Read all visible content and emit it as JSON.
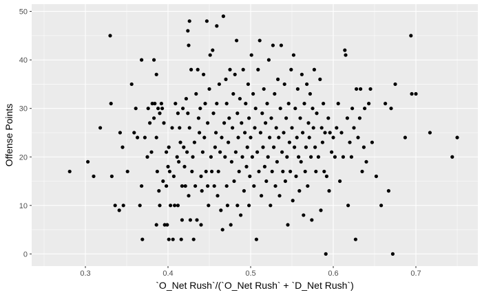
{
  "chart_data": {
    "type": "scatter",
    "title": "",
    "xlabel": "`O_Net Rush`/(`O_Net Rush` + `D_Net Rush`)",
    "ylabel": "Offense Points",
    "xlim": [
      0.235,
      0.775
    ],
    "ylim": [
      -2.5,
      51.5
    ],
    "xticks": [
      0.3,
      0.4,
      0.5,
      0.6,
      0.7
    ],
    "yticks": [
      0,
      10,
      20,
      30,
      40,
      50
    ],
    "grid": true,
    "legend": "none",
    "point_color": "#000000",
    "panel_color": "#ebebeb",
    "grid_color": "#ffffff",
    "series": [
      {
        "points": [
          [
            0.281,
            17
          ],
          [
            0.303,
            19
          ],
          [
            0.31,
            16
          ],
          [
            0.318,
            26
          ],
          [
            0.33,
            45
          ],
          [
            0.331,
            31
          ],
          [
            0.332,
            16
          ],
          [
            0.336,
            10
          ],
          [
            0.341,
            9
          ],
          [
            0.342,
            25
          ],
          [
            0.345,
            22
          ],
          [
            0.346,
            10
          ],
          [
            0.351,
            17
          ],
          [
            0.356,
            35
          ],
          [
            0.359,
            25
          ],
          [
            0.361,
            30
          ],
          [
            0.363,
            24
          ],
          [
            0.366,
            10
          ],
          [
            0.368,
            40
          ],
          [
            0.368,
            14
          ],
          [
            0.369,
            3
          ],
          [
            0.372,
            24
          ],
          [
            0.375,
            20
          ],
          [
            0.376,
            30
          ],
          [
            0.378,
            27
          ],
          [
            0.38,
            21
          ],
          [
            0.381,
            31
          ],
          [
            0.383,
            40
          ],
          [
            0.383,
            28
          ],
          [
            0.384,
            31
          ],
          [
            0.386,
            24
          ],
          [
            0.386,
            37
          ],
          [
            0.386,
            6
          ],
          [
            0.387,
            17
          ],
          [
            0.388,
            30
          ],
          [
            0.389,
            13
          ],
          [
            0.39,
            29
          ],
          [
            0.39,
            10
          ],
          [
            0.392,
            31
          ],
          [
            0.393,
            30
          ],
          [
            0.394,
            15
          ],
          [
            0.395,
            27
          ],
          [
            0.396,
            6
          ],
          [
            0.398,
            14
          ],
          [
            0.398,
            21
          ],
          [
            0.399,
            6
          ],
          [
            0.4,
            18
          ],
          [
            0.401,
            22
          ],
          [
            0.401,
            3
          ],
          [
            0.402,
            17
          ],
          [
            0.403,
            10
          ],
          [
            0.405,
            26
          ],
          [
            0.406,
            3
          ],
          [
            0.407,
            16
          ],
          [
            0.408,
            10
          ],
          [
            0.409,
            31
          ],
          [
            0.411,
            20
          ],
          [
            0.412,
            10
          ],
          [
            0.412,
            29
          ],
          [
            0.413,
            19
          ],
          [
            0.414,
            26
          ],
          [
            0.415,
            23
          ],
          [
            0.416,
            3
          ],
          [
            0.417,
            14
          ],
          [
            0.417,
            7
          ],
          [
            0.418,
            30
          ],
          [
            0.419,
            22
          ],
          [
            0.42,
            18
          ],
          [
            0.421,
            14
          ],
          [
            0.422,
            32
          ],
          [
            0.423,
            21
          ],
          [
            0.424,
            46
          ],
          [
            0.424,
            29
          ],
          [
            0.425,
            12
          ],
          [
            0.425,
            43
          ],
          [
            0.426,
            48
          ],
          [
            0.426,
            26
          ],
          [
            0.427,
            7
          ],
          [
            0.428,
            38
          ],
          [
            0.429,
            17
          ],
          [
            0.43,
            20
          ],
          [
            0.431,
            3
          ],
          [
            0.432,
            23
          ],
          [
            0.433,
            14
          ],
          [
            0.434,
            33
          ],
          [
            0.435,
            7
          ],
          [
            0.436,
            38
          ],
          [
            0.437,
            28
          ],
          [
            0.438,
            25
          ],
          [
            0.439,
            30
          ],
          [
            0.44,
            16
          ],
          [
            0.44,
            6
          ],
          [
            0.441,
            13
          ],
          [
            0.442,
            21
          ],
          [
            0.443,
            37
          ],
          [
            0.444,
            24
          ],
          [
            0.445,
            31
          ],
          [
            0.446,
            17
          ],
          [
            0.447,
            48
          ],
          [
            0.448,
            14
          ],
          [
            0.448,
            27
          ],
          [
            0.449,
            10
          ],
          [
            0.45,
            34
          ],
          [
            0.451,
            41
          ],
          [
            0.452,
            20
          ],
          [
            0.453,
            17
          ],
          [
            0.454,
            42
          ],
          [
            0.455,
            29
          ],
          [
            0.456,
            14
          ],
          [
            0.457,
            22
          ],
          [
            0.458,
            25
          ],
          [
            0.459,
            47
          ],
          [
            0.459,
            31
          ],
          [
            0.46,
            12
          ],
          [
            0.461,
            17
          ],
          [
            0.462,
            35
          ],
          [
            0.463,
            21
          ],
          [
            0.464,
            9
          ],
          [
            0.465,
            24
          ],
          [
            0.466,
            5
          ],
          [
            0.467,
            49
          ],
          [
            0.468,
            27
          ],
          [
            0.469,
            20
          ],
          [
            0.47,
            36
          ],
          [
            0.471,
            14
          ],
          [
            0.471,
            31
          ],
          [
            0.472,
            10
          ],
          [
            0.473,
            23
          ],
          [
            0.474,
            28
          ],
          [
            0.475,
            38
          ],
          [
            0.476,
            6
          ],
          [
            0.477,
            19
          ],
          [
            0.478,
            26
          ],
          [
            0.479,
            33
          ],
          [
            0.48,
            15
          ],
          [
            0.481,
            37
          ],
          [
            0.482,
            21
          ],
          [
            0.483,
            44
          ],
          [
            0.484,
            10
          ],
          [
            0.484,
            29
          ],
          [
            0.485,
            24
          ],
          [
            0.486,
            17
          ],
          [
            0.487,
            32
          ],
          [
            0.488,
            8
          ],
          [
            0.489,
            27
          ],
          [
            0.49,
            20
          ],
          [
            0.491,
            38
          ],
          [
            0.492,
            13
          ],
          [
            0.493,
            25
          ],
          [
            0.494,
            31
          ],
          [
            0.495,
            18
          ],
          [
            0.496,
            22
          ],
          [
            0.497,
            35
          ],
          [
            0.498,
            10
          ],
          [
            0.498,
            28
          ],
          [
            0.499,
            16
          ],
          [
            0.5,
            24
          ],
          [
            0.501,
            41
          ],
          [
            0.502,
            20
          ],
          [
            0.503,
            33
          ],
          [
            0.504,
            14
          ],
          [
            0.505,
            26
          ],
          [
            0.506,
            30
          ],
          [
            0.507,
            3
          ],
          [
            0.508,
            21
          ],
          [
            0.509,
            38
          ],
          [
            0.51,
            17
          ],
          [
            0.511,
            44
          ],
          [
            0.512,
            25
          ],
          [
            0.513,
            12
          ],
          [
            0.514,
            29
          ],
          [
            0.515,
            22
          ],
          [
            0.516,
            34
          ],
          [
            0.517,
            18
          ],
          [
            0.518,
            27
          ],
          [
            0.519,
            15
          ],
          [
            0.52,
            31
          ],
          [
            0.521,
            20
          ],
          [
            0.522,
            40
          ],
          [
            0.523,
            24
          ],
          [
            0.524,
            10
          ],
          [
            0.525,
            28
          ],
          [
            0.526,
            17
          ],
          [
            0.527,
            43
          ],
          [
            0.528,
            22
          ],
          [
            0.529,
            33
          ],
          [
            0.53,
            14
          ],
          [
            0.531,
            26
          ],
          [
            0.532,
            19
          ],
          [
            0.533,
            36
          ],
          [
            0.534,
            24
          ],
          [
            0.535,
            12
          ],
          [
            0.536,
            30
          ],
          [
            0.537,
            43
          ],
          [
            0.538,
            21
          ],
          [
            0.539,
            17
          ],
          [
            0.54,
            25
          ],
          [
            0.541,
            35
          ],
          [
            0.542,
            15
          ],
          [
            0.543,
            28
          ],
          [
            0.544,
            20
          ],
          [
            0.545,
            6
          ],
          [
            0.546,
            31
          ],
          [
            0.547,
            23
          ],
          [
            0.548,
            17
          ],
          [
            0.549,
            38
          ],
          [
            0.55,
            26
          ],
          [
            0.551,
            11
          ],
          [
            0.552,
            41
          ],
          [
            0.553,
            22
          ],
          [
            0.554,
            30
          ],
          [
            0.555,
            16
          ],
          [
            0.556,
            24
          ],
          [
            0.557,
            34
          ],
          [
            0.558,
            20
          ],
          [
            0.559,
            13
          ],
          [
            0.56,
            28
          ],
          [
            0.561,
            19
          ],
          [
            0.562,
            37
          ],
          [
            0.563,
            25
          ],
          [
            0.564,
            8
          ],
          [
            0.565,
            31
          ],
          [
            0.566,
            17
          ],
          [
            0.567,
            22
          ],
          [
            0.568,
            35
          ],
          [
            0.569,
            14
          ],
          [
            0.57,
            27
          ],
          [
            0.571,
            24
          ],
          [
            0.572,
            33
          ],
          [
            0.573,
            20
          ],
          [
            0.574,
            7
          ],
          [
            0.575,
            30
          ],
          [
            0.576,
            26
          ],
          [
            0.577,
            38
          ],
          [
            0.578,
            22
          ],
          [
            0.579,
            17
          ],
          [
            0.58,
            29
          ],
          [
            0.582,
            20
          ],
          [
            0.584,
            36
          ],
          [
            0.585,
            9
          ],
          [
            0.586,
            26
          ],
          [
            0.587,
            23
          ],
          [
            0.588,
            31
          ],
          [
            0.589,
            17
          ],
          [
            0.59,
            25
          ],
          [
            0.591,
            0
          ],
          [
            0.592,
            16
          ],
          [
            0.594,
            28
          ],
          [
            0.595,
            13
          ],
          [
            0.596,
            25
          ],
          [
            0.598,
            21
          ],
          [
            0.6,
            24
          ],
          [
            0.602,
            20
          ],
          [
            0.604,
            26
          ],
          [
            0.606,
            31
          ],
          [
            0.608,
            15
          ],
          [
            0.61,
            25
          ],
          [
            0.612,
            20
          ],
          [
            0.614,
            42
          ],
          [
            0.615,
            41
          ],
          [
            0.617,
            28
          ],
          [
            0.618,
            10
          ],
          [
            0.62,
            23
          ],
          [
            0.622,
            20
          ],
          [
            0.623,
            30
          ],
          [
            0.625,
            26
          ],
          [
            0.627,
            3
          ],
          [
            0.628,
            34
          ],
          [
            0.63,
            24
          ],
          [
            0.632,
            28
          ],
          [
            0.633,
            34
          ],
          [
            0.635,
            17
          ],
          [
            0.637,
            22
          ],
          [
            0.638,
            30
          ],
          [
            0.64,
            19
          ],
          [
            0.643,
            31
          ],
          [
            0.645,
            34
          ],
          [
            0.647,
            23
          ],
          [
            0.652,
            16
          ],
          [
            0.658,
            10
          ],
          [
            0.663,
            31
          ],
          [
            0.667,
            13
          ],
          [
            0.67,
            30
          ],
          [
            0.672,
            0
          ],
          [
            0.675,
            35
          ],
          [
            0.687,
            24
          ],
          [
            0.694,
            45
          ],
          [
            0.695,
            33
          ],
          [
            0.7,
            33
          ],
          [
            0.717,
            25
          ],
          [
            0.744,
            20
          ],
          [
            0.75,
            24
          ]
        ]
      }
    ]
  }
}
